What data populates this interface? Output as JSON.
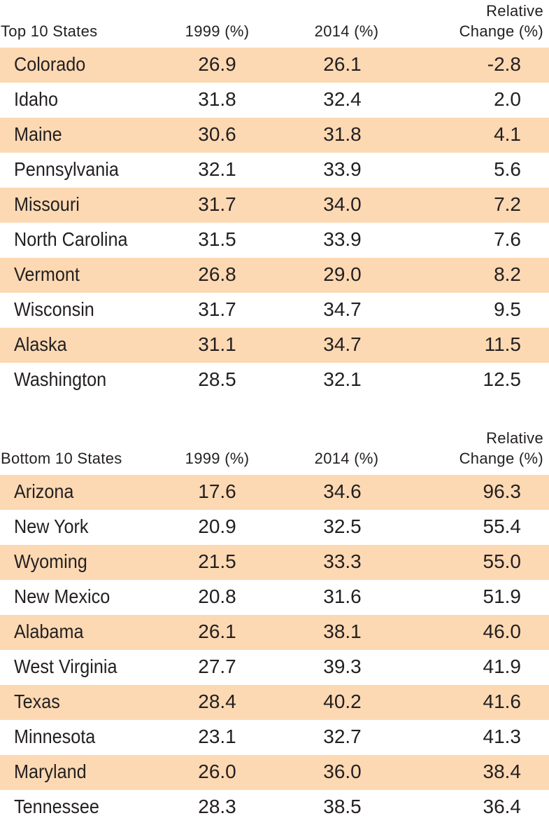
{
  "top_table": {
    "headers": {
      "state": "Top 10 States",
      "y1999": "1999 (%)",
      "y2014": "2014 (%)",
      "change_line1": "Relative",
      "change_line2": "Change (%)"
    },
    "rows": [
      {
        "state": "Colorado",
        "y1999": "26.9",
        "y2014": "26.1",
        "change": "-2.8"
      },
      {
        "state": "Idaho",
        "y1999": "31.8",
        "y2014": "32.4",
        "change": "2.0"
      },
      {
        "state": "Maine",
        "y1999": "30.6",
        "y2014": "31.8",
        "change": "4.1"
      },
      {
        "state": "Pennsylvania",
        "y1999": "32.1",
        "y2014": "33.9",
        "change": "5.6"
      },
      {
        "state": "Missouri",
        "y1999": "31.7",
        "y2014": "34.0",
        "change": "7.2"
      },
      {
        "state": "North Carolina",
        "y1999": "31.5",
        "y2014": "33.9",
        "change": "7.6"
      },
      {
        "state": "Vermont",
        "y1999": "26.8",
        "y2014": "29.0",
        "change": "8.2"
      },
      {
        "state": "Wisconsin",
        "y1999": "31.7",
        "y2014": "34.7",
        "change": "9.5"
      },
      {
        "state": "Alaska",
        "y1999": "31.1",
        "y2014": "34.7",
        "change": "11.5"
      },
      {
        "state": "Washington",
        "y1999": "28.5",
        "y2014": "32.1",
        "change": "12.5"
      }
    ]
  },
  "bottom_table": {
    "headers": {
      "state": "Bottom 10 States",
      "y1999": "1999 (%)",
      "y2014": "2014 (%)",
      "change_line1": "Relative",
      "change_line2": "Change (%)"
    },
    "rows": [
      {
        "state": "Arizona",
        "y1999": "17.6",
        "y2014": "34.6",
        "change": "96.3"
      },
      {
        "state": "New York",
        "y1999": "20.9",
        "y2014": "32.5",
        "change": "55.4"
      },
      {
        "state": "Wyoming",
        "y1999": "21.5",
        "y2014": "33.3",
        "change": "55.0"
      },
      {
        "state": "New Mexico",
        "y1999": "20.8",
        "y2014": "31.6",
        "change": "51.9"
      },
      {
        "state": "Alabama",
        "y1999": "26.1",
        "y2014": "38.1",
        "change": "46.0"
      },
      {
        "state": "West Virginia",
        "y1999": "27.7",
        "y2014": "39.3",
        "change": "41.9"
      },
      {
        "state": "Texas",
        "y1999": "28.4",
        "y2014": "40.2",
        "change": "41.6"
      },
      {
        "state": "Minnesota",
        "y1999": "23.1",
        "y2014": "32.7",
        "change": "41.3"
      },
      {
        "state": "Maryland",
        "y1999": "26.0",
        "y2014": "36.0",
        "change": "38.4"
      },
      {
        "state": "Tennessee",
        "y1999": "28.3",
        "y2014": "38.5",
        "change": "36.4"
      }
    ]
  },
  "colors": {
    "shaded_row": "#fcd9b3",
    "text": "#231f20"
  }
}
